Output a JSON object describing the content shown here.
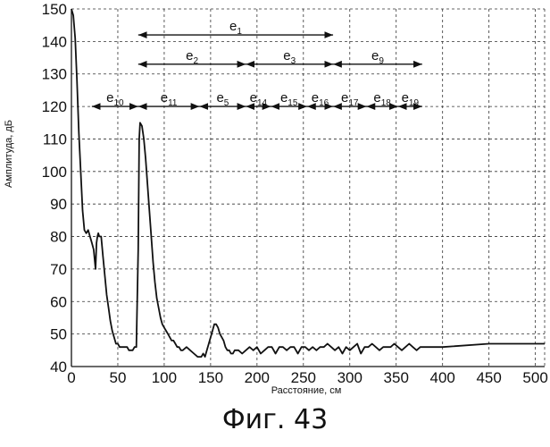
{
  "caption": "Фиг. 43",
  "chart_data": {
    "type": "line",
    "xlabel": "Расстояние, см",
    "ylabel": "Амплитуда, дБ",
    "xlim": [
      0,
      510
    ],
    "ylim": [
      40,
      150
    ],
    "xticks": [
      0,
      50,
      100,
      150,
      200,
      250,
      300,
      350,
      400,
      450,
      500
    ],
    "yticks": [
      40,
      50,
      60,
      70,
      80,
      90,
      100,
      110,
      120,
      130,
      140,
      150
    ],
    "grid": true,
    "series": [
      {
        "x": [
          0,
          2,
          4,
          6,
          8,
          10,
          12,
          14,
          16,
          18,
          20,
          22,
          24,
          26,
          27,
          28,
          29,
          30,
          32,
          34,
          36,
          38,
          40,
          42,
          44,
          46,
          48,
          50,
          52,
          56,
          60,
          62,
          64,
          66,
          68,
          70,
          72,
          73,
          74,
          76,
          78,
          80,
          82,
          84,
          86,
          88,
          90,
          92,
          94,
          96,
          98,
          100,
          102,
          104,
          106,
          108,
          110,
          112,
          114,
          116,
          118,
          120,
          124,
          128,
          132,
          136,
          140,
          142,
          144,
          146,
          148,
          150,
          152,
          154,
          156,
          158,
          160,
          162,
          164,
          166,
          168,
          170,
          172,
          174,
          176,
          178,
          180,
          184,
          188,
          192,
          196,
          200,
          204,
          208,
          212,
          216,
          220,
          224,
          228,
          232,
          236,
          240,
          244,
          248,
          252,
          256,
          260,
          264,
          268,
          272,
          276,
          280,
          284,
          288,
          292,
          296,
          300,
          304,
          308,
          312,
          316,
          320,
          324,
          328,
          332,
          336,
          340,
          344,
          348,
          352,
          356,
          360,
          364,
          368,
          372,
          376,
          380,
          384,
          400,
          450,
          510
        ],
        "values": [
          150,
          148,
          141,
          128,
          112,
          100,
          88,
          82,
          81,
          82,
          80,
          78,
          76,
          70,
          78,
          80,
          81,
          80,
          80,
          74,
          68,
          62,
          58,
          54,
          51,
          49,
          47,
          47,
          46,
          46,
          46,
          45,
          45,
          45,
          46,
          46,
          76,
          110,
          115,
          114,
          110,
          104,
          96,
          88,
          80,
          72,
          66,
          61,
          58,
          55,
          53,
          52,
          51,
          50,
          49,
          48,
          48,
          47,
          46,
          46,
          45,
          45,
          46,
          45,
          44,
          43,
          43,
          44,
          43,
          45,
          47,
          49,
          51,
          53,
          53,
          52,
          50,
          49,
          48,
          46,
          45,
          45,
          44,
          44,
          45,
          45,
          45,
          44,
          45,
          46,
          45,
          46,
          44,
          45,
          46,
          46,
          44,
          46,
          46,
          45,
          46,
          46,
          44,
          46,
          46,
          45,
          46,
          45,
          46,
          46,
          47,
          46,
          45,
          46,
          44,
          46,
          45,
          46,
          47,
          44,
          46,
          46,
          47,
          46,
          45,
          46,
          46,
          46,
          47,
          46,
          45,
          46,
          47,
          46,
          45,
          46,
          46,
          46,
          46,
          47,
          47
        ]
      }
    ],
    "segments": [
      {
        "base": "e",
        "sub": "1",
        "x1": 72,
        "x2": 282,
        "y": 142
      },
      {
        "base": "e",
        "sub": "2",
        "x1": 72,
        "x2": 188,
        "y": 133
      },
      {
        "base": "e",
        "sub": "3",
        "x1": 188,
        "x2": 282,
        "y": 133
      },
      {
        "base": "e",
        "sub": "9",
        "x1": 282,
        "x2": 378,
        "y": 133
      },
      {
        "base": "e",
        "sub": "10",
        "x1": 22,
        "x2": 72,
        "y": 120
      },
      {
        "base": "e",
        "sub": "11",
        "x1": 72,
        "x2": 138,
        "y": 120
      },
      {
        "base": "e",
        "sub": "5",
        "x1": 138,
        "x2": 188,
        "y": 120
      },
      {
        "base": "e",
        "sub": "14",
        "x1": 188,
        "x2": 215,
        "y": 120
      },
      {
        "base": "e",
        "sub": "15",
        "x1": 215,
        "x2": 254,
        "y": 120
      },
      {
        "base": "e",
        "sub": "16",
        "x1": 254,
        "x2": 282,
        "y": 120
      },
      {
        "base": "e",
        "sub": "17",
        "x1": 282,
        "x2": 318,
        "y": 120
      },
      {
        "base": "e",
        "sub": "18",
        "x1": 318,
        "x2": 352,
        "y": 120
      },
      {
        "base": "e",
        "sub": "19",
        "x1": 352,
        "x2": 378,
        "y": 120
      }
    ]
  }
}
